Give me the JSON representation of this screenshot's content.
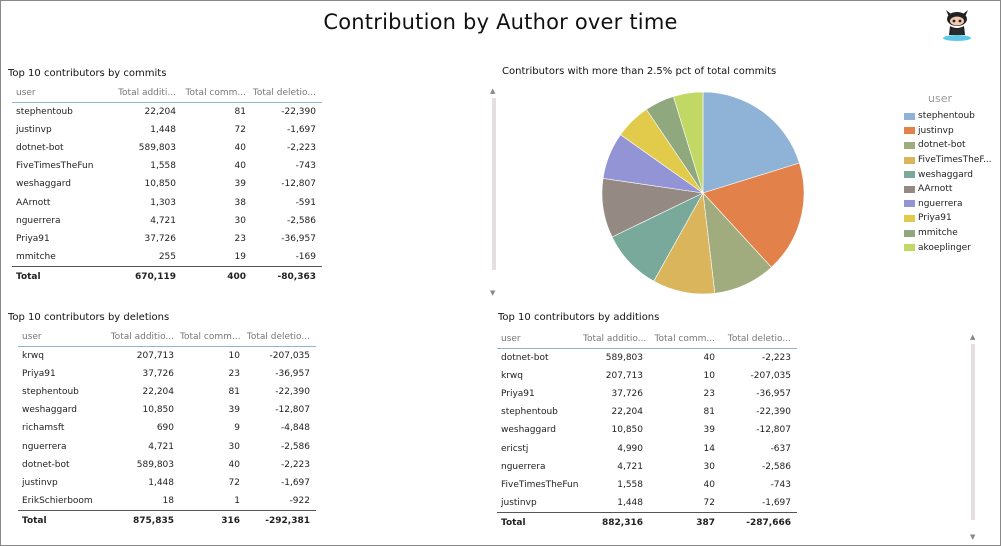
{
  "page": {
    "title": "Contribution by Author over time"
  },
  "colors": [
    "#8fb3d6",
    "#e2824a",
    "#a0ab7e",
    "#dbb55c",
    "#78a99a",
    "#958984",
    "#9294d6",
    "#e2ca4a",
    "#8fa87e",
    "#c1d864"
  ],
  "commits_table": {
    "title": "Top 10 contributors by commits",
    "columns": [
      "user",
      "Total additi...",
      "Total comm...",
      "Total deletio..."
    ],
    "rows": [
      [
        "stephentoub",
        "22,204",
        "81",
        "-22,390"
      ],
      [
        "justinvp",
        "1,448",
        "72",
        "-1,697"
      ],
      [
        "dotnet-bot",
        "589,803",
        "40",
        "-2,223"
      ],
      [
        "FiveTimesTheFun",
        "1,558",
        "40",
        "-743"
      ],
      [
        "weshaggard",
        "10,850",
        "39",
        "-12,807"
      ],
      [
        "AArnott",
        "1,303",
        "38",
        "-591"
      ],
      [
        "nguerrera",
        "4,721",
        "30",
        "-2,586"
      ],
      [
        "Priya91",
        "37,726",
        "23",
        "-36,957"
      ],
      [
        "mmitche",
        "255",
        "19",
        "-169"
      ]
    ],
    "total": [
      "Total",
      "670,119",
      "400",
      "-80,363"
    ]
  },
  "deletions_table": {
    "title": "Top 10 contributors by deletions",
    "columns": [
      "user",
      "Total additio...",
      "Total comm...",
      "Total deletio..."
    ],
    "rows": [
      [
        "krwq",
        "207,713",
        "10",
        "-207,035"
      ],
      [
        "Priya91",
        "37,726",
        "23",
        "-36,957"
      ],
      [
        "stephentoub",
        "22,204",
        "81",
        "-22,390"
      ],
      [
        "weshaggard",
        "10,850",
        "39",
        "-12,807"
      ],
      [
        "richamsft",
        "690",
        "9",
        "-4,848"
      ],
      [
        "nguerrera",
        "4,721",
        "30",
        "-2,586"
      ],
      [
        "dotnet-bot",
        "589,803",
        "40",
        "-2,223"
      ],
      [
        "justinvp",
        "1,448",
        "72",
        "-1,697"
      ],
      [
        "ErikSchierboom",
        "18",
        "1",
        "-922"
      ]
    ],
    "total": [
      "Total",
      "875,835",
      "316",
      "-292,381"
    ]
  },
  "additions_table": {
    "title": "Top 10 contributors by additions",
    "columns": [
      "user",
      "Total additio...",
      "Total comm...",
      "Total deletio..."
    ],
    "rows": [
      [
        "dotnet-bot",
        "589,803",
        "40",
        "-2,223"
      ],
      [
        "krwq",
        "207,713",
        "10",
        "-207,035"
      ],
      [
        "Priya91",
        "37,726",
        "23",
        "-36,957"
      ],
      [
        "stephentoub",
        "22,204",
        "81",
        "-22,390"
      ],
      [
        "weshaggard",
        "10,850",
        "39",
        "-12,807"
      ],
      [
        "ericstj",
        "4,990",
        "14",
        "-637"
      ],
      [
        "nguerrera",
        "4,721",
        "30",
        "-2,586"
      ],
      [
        "FiveTimesTheFun",
        "1,558",
        "40",
        "-743"
      ],
      [
        "justinvp",
        "1,448",
        "72",
        "-1,697"
      ]
    ],
    "total": [
      "Total",
      "882,316",
      "387",
      "-287,666"
    ]
  },
  "chart_data": {
    "type": "pie",
    "title": "Contributors with more than 2.5% pct of total commits",
    "legend_title": "user",
    "legend_position": "right",
    "categories": [
      "stephentoub",
      "justinvp",
      "dotnet-bot",
      "FiveTimesTheF...",
      "weshaggard",
      "AArnott",
      "nguerrera",
      "Priya91",
      "mmitche",
      "akoeplinger"
    ],
    "values": [
      81,
      72,
      40,
      40,
      39,
      38,
      30,
      23,
      19,
      19
    ]
  }
}
